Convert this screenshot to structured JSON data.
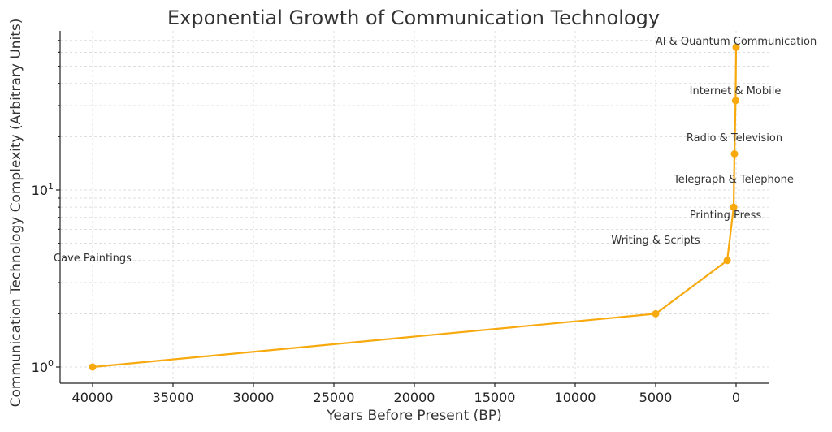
{
  "chart_data": {
    "type": "line",
    "title": "Exponential Growth of Communication Technology",
    "xlabel": "Years Before Present (BP)",
    "ylabel": "Communication Technology Complexity (Arbitrary Units)",
    "x_inverted": true,
    "xlim": [
      42000,
      -2000
    ],
    "ylim": [
      0.9,
      100
    ],
    "yscale": "log",
    "grid": true,
    "color": "#f7a90e",
    "x_ticks": [
      40000,
      35000,
      30000,
      25000,
      20000,
      15000,
      10000,
      5000,
      0
    ],
    "y_ticks": [
      {
        "value": 1,
        "base": "10",
        "exp": "0"
      },
      {
        "value": 10,
        "base": "10",
        "exp": "1"
      }
    ],
    "points": [
      {
        "label": "Cave Paintings",
        "x": 40000,
        "y": 1
      },
      {
        "label": "Writing & Scripts",
        "x": 5000,
        "y": 2
      },
      {
        "label": "Printing Press",
        "x": 550,
        "y": 4
      },
      {
        "label": "Telegraph & Telephone",
        "x": 150,
        "y": 8
      },
      {
        "label": "Radio & Television",
        "x": 100,
        "y": 16
      },
      {
        "label": "Internet & Mobile",
        "x": 30,
        "y": 32
      },
      {
        "label": "AI & Quantum Communication",
        "x": 0,
        "y": 64
      }
    ]
  }
}
